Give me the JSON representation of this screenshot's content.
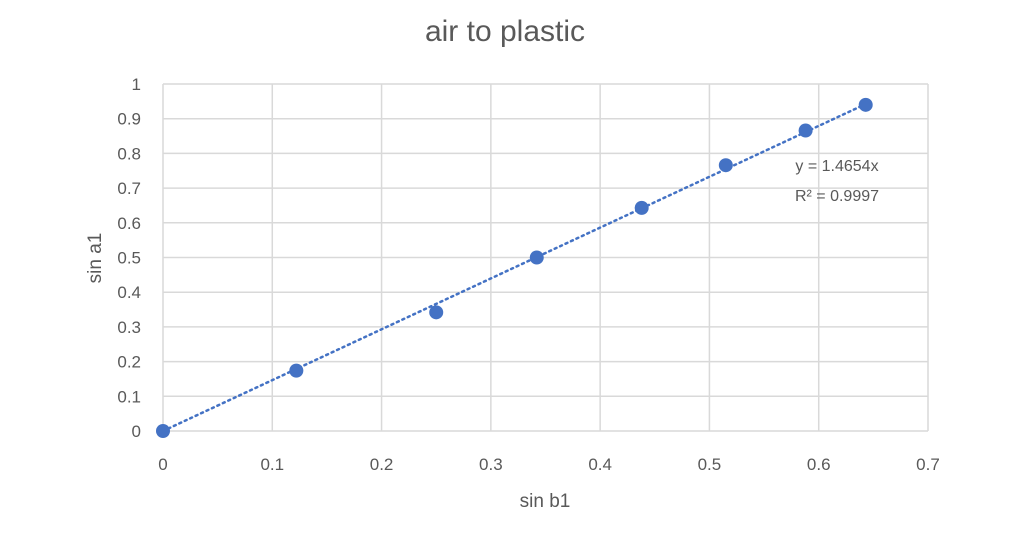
{
  "chart_data": {
    "type": "scatter",
    "title": "air to plastic",
    "xlabel": "sin b1",
    "ylabel": "sin a1",
    "xlim": [
      0,
      0.7
    ],
    "ylim": [
      0,
      1
    ],
    "x_ticks": [
      0,
      0.1,
      0.2,
      0.3,
      0.4,
      0.5,
      0.6,
      0.7
    ],
    "y_ticks": [
      0,
      0.1,
      0.2,
      0.3,
      0.4,
      0.5,
      0.6,
      0.7,
      0.8,
      0.9,
      1
    ],
    "x_tick_labels": [
      "0",
      "0.1",
      "0.2",
      "0.3",
      "0.4",
      "0.5",
      "0.6",
      "0.7"
    ],
    "y_tick_labels": [
      "0",
      "0.1",
      "0.2",
      "0.3",
      "0.4",
      "0.5",
      "0.6",
      "0.7",
      "0.8",
      "0.9",
      "1"
    ],
    "grid": true,
    "legend": "none",
    "series": [
      {
        "x": [
          0,
          0.122,
          0.25,
          0.342,
          0.438,
          0.515,
          0.588,
          0.643
        ],
        "y": [
          0,
          0.174,
          0.342,
          0.5,
          0.643,
          0.766,
          0.866,
          0.94
        ]
      }
    ],
    "trendline": {
      "type": "linear-through-origin",
      "slope": 1.4654,
      "style": "dotted",
      "equation": "y = 1.4654x",
      "r_squared": "R² = 0.9997"
    },
    "colors": {
      "marker": "#4472C4",
      "trendline": "#4472C4",
      "grid": "#D9D9D9",
      "text": "#595959"
    }
  }
}
